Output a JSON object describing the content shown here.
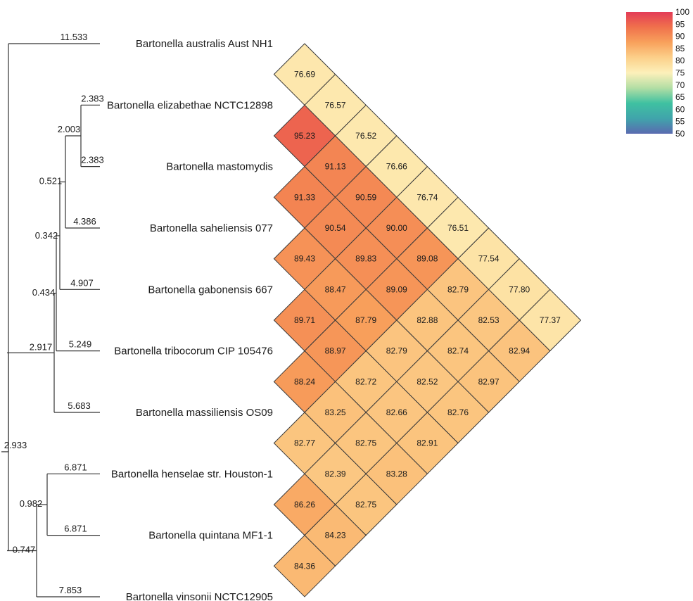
{
  "chart_data": {
    "type": "heatmap",
    "title": "",
    "taxa": [
      "Bartonella australis Aust NH1",
      "Bartonella elizabethae NCTC12898",
      "Bartonella mastomydis",
      "Bartonella saheliensis 077",
      "Bartonella gabonensis 667",
      "Bartonella tribocorum CIP 105476",
      "Bartonella massiliensis OS09",
      "Bartonella henselae str. Houston-1",
      "Bartonella quintana MF1-1",
      "Bartonella vinsonii NCTC12905"
    ],
    "pairwise_identity": [
      [
        1,
        0,
        76.69
      ],
      [
        2,
        0,
        76.57
      ],
      [
        3,
        0,
        76.52
      ],
      [
        4,
        0,
        76.66
      ],
      [
        5,
        0,
        76.74
      ],
      [
        6,
        0,
        76.51
      ],
      [
        7,
        0,
        77.54
      ],
      [
        8,
        0,
        77.8
      ],
      [
        9,
        0,
        77.37
      ],
      [
        2,
        1,
        95.23
      ],
      [
        3,
        1,
        91.13
      ],
      [
        4,
        1,
        90.59
      ],
      [
        5,
        1,
        90.0
      ],
      [
        6,
        1,
        89.08
      ],
      [
        7,
        1,
        82.79
      ],
      [
        8,
        1,
        82.53
      ],
      [
        9,
        1,
        82.94
      ],
      [
        3,
        2,
        91.33
      ],
      [
        4,
        2,
        90.54
      ],
      [
        5,
        2,
        89.83
      ],
      [
        6,
        2,
        89.09
      ],
      [
        7,
        2,
        82.88
      ],
      [
        8,
        2,
        82.74
      ],
      [
        9,
        2,
        82.97
      ],
      [
        4,
        3,
        89.43
      ],
      [
        5,
        3,
        88.47
      ],
      [
        6,
        3,
        87.79
      ],
      [
        7,
        3,
        82.79
      ],
      [
        8,
        3,
        82.52
      ],
      [
        9,
        3,
        82.76
      ],
      [
        5,
        4,
        89.71
      ],
      [
        6,
        4,
        88.97
      ],
      [
        7,
        4,
        82.72
      ],
      [
        8,
        4,
        82.66
      ],
      [
        9,
        4,
        82.91
      ],
      [
        6,
        5,
        88.24
      ],
      [
        7,
        5,
        83.25
      ],
      [
        8,
        5,
        82.75
      ],
      [
        9,
        5,
        83.28
      ],
      [
        7,
        6,
        82.77
      ],
      [
        8,
        6,
        82.39
      ],
      [
        9,
        6,
        82.75
      ],
      [
        8,
        7,
        86.26
      ],
      [
        9,
        7,
        84.23
      ],
      [
        9,
        8,
        84.36
      ]
    ],
    "tree": {
      "leaf_branch_lengths": [
        "11.533",
        "2.383",
        "2.383",
        "4.386",
        "4.907",
        "5.249",
        "5.683",
        "6.871",
        "6.871",
        "7.853"
      ],
      "internal_nodes": [
        {
          "members": [
            1,
            2
          ],
          "label": "2.003"
        },
        {
          "members": [
            1,
            2,
            3
          ],
          "label": "0.521"
        },
        {
          "members": [
            1,
            2,
            3,
            4
          ],
          "label": "0.342"
        },
        {
          "members": [
            1,
            2,
            3,
            4,
            5
          ],
          "label": "0.434"
        },
        {
          "members": [
            1,
            2,
            3,
            4,
            5,
            6
          ],
          "label": "2.917"
        },
        {
          "members": [
            7,
            8
          ],
          "label": "0.982"
        },
        {
          "members": [
            7,
            8,
            9
          ],
          "label": "0.747"
        },
        {
          "members": [
            1,
            2,
            3,
            4,
            5,
            6,
            7,
            8,
            9
          ],
          "label": "2.933"
        }
      ]
    },
    "colorbar": {
      "range": [
        50,
        100
      ],
      "ticks": [
        "100",
        "95",
        "90",
        "85",
        "80",
        "75",
        "70",
        "65",
        "60",
        "55",
        "50"
      ],
      "colors": [
        "#e33c57",
        "#f0714c",
        "#f8a15c",
        "#fcd08a",
        "#fdf0ba",
        "#b2dea4",
        "#3fc1a1",
        "#40a4ab",
        "#5a6ab0"
      ],
      "legend_position": "top-right"
    }
  }
}
